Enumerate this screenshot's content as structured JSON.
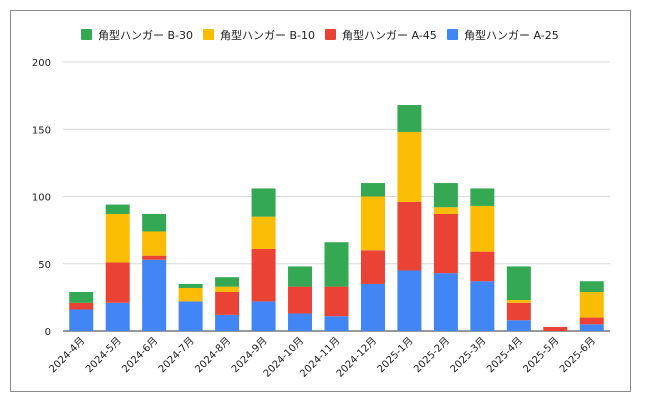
{
  "chart_data": {
    "type": "bar",
    "stacked": true,
    "title": "",
    "xlabel": "",
    "ylabel": "",
    "ylim": [
      0,
      200
    ],
    "yticks": [
      0,
      50,
      100,
      150,
      200
    ],
    "grid": true,
    "legend_position": "top",
    "categories": [
      "2024-4月",
      "2024-5月",
      "2024-6月",
      "2024-7月",
      "2024-8月",
      "2024-9月",
      "2024-10月",
      "2024-11月",
      "2024-12月",
      "2025-1月",
      "2025-2月",
      "2025-3月",
      "2025-4月",
      "2025-5月",
      "2025-6月"
    ],
    "series": [
      {
        "name": "角型ハンガー A-25",
        "color": "#4285f4",
        "values": [
          16,
          21,
          53,
          22,
          12,
          22,
          13,
          11,
          35,
          45,
          43,
          37,
          8,
          0,
          5
        ]
      },
      {
        "name": "角型ハンガー A-45",
        "color": "#ea4335",
        "values": [
          5,
          30,
          3,
          0,
          17,
          39,
          20,
          22,
          25,
          51,
          44,
          22,
          13,
          3,
          5
        ]
      },
      {
        "name": "角型ハンガー B-10",
        "color": "#fbbc04",
        "values": [
          0,
          36,
          18,
          10,
          4,
          24,
          0,
          0,
          40,
          52,
          5,
          34,
          2,
          0,
          19
        ]
      },
      {
        "name": "角型ハンガー B-30",
        "color": "#34a853",
        "values": [
          8,
          7,
          13,
          3,
          7,
          21,
          15,
          33,
          10,
          20,
          18,
          13,
          25,
          0,
          8
        ]
      }
    ],
    "legend_order": [
      "角型ハンガー B-30",
      "角型ハンガー B-10",
      "角型ハンガー A-45",
      "角型ハンガー A-25"
    ]
  }
}
